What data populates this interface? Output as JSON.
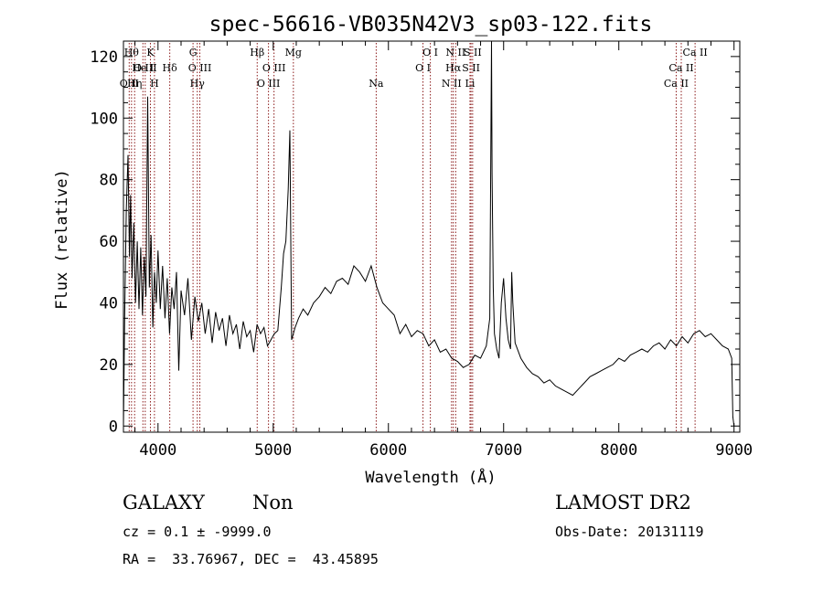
{
  "chart_data": {
    "type": "line",
    "title": "spec-56616-VB035N42V3_sp03-122.fits",
    "xlabel": "Wavelength (Å)",
    "ylabel": "Flux (relative)",
    "xlim": [
      3700,
      9050
    ],
    "ylim": [
      -2,
      125
    ],
    "xticks": [
      4000,
      5000,
      6000,
      7000,
      8000,
      9000
    ],
    "yticks": [
      0,
      20,
      40,
      60,
      80,
      100,
      120
    ],
    "grid": false,
    "line_color": "#000000",
    "marker_color": "#8b1a1a",
    "series": [
      {
        "x": [
          3700,
          3710,
          3725,
          3740,
          3752,
          3762,
          3775,
          3790,
          3805,
          3820,
          3835,
          3850,
          3865,
          3880,
          3895,
          3910,
          3925,
          3940,
          3955,
          3970,
          3985,
          4000,
          4020,
          4040,
          4060,
          4080,
          4100,
          4120,
          4140,
          4160,
          4180,
          4200,
          4230,
          4260,
          4290,
          4320,
          4350,
          4380,
          4410,
          4440,
          4470,
          4500,
          4530,
          4560,
          4590,
          4620,
          4650,
          4680,
          4710,
          4740,
          4770,
          4800,
          4830,
          4860,
          4890,
          4920,
          4950,
          4980,
          5010,
          5040,
          5070,
          5090,
          5110,
          5130,
          5145,
          5160,
          5175,
          5190,
          5220,
          5260,
          5300,
          5350,
          5400,
          5450,
          5500,
          5550,
          5600,
          5650,
          5700,
          5750,
          5800,
          5850,
          5900,
          5950,
          6000,
          6050,
          6100,
          6150,
          6200,
          6250,
          6300,
          6350,
          6400,
          6450,
          6500,
          6550,
          6600,
          6650,
          6700,
          6750,
          6800,
          6850,
          6880,
          6895,
          6900,
          6910,
          6920,
          6940,
          6960,
          6980,
          7000,
          7020,
          7040,
          7060,
          7070,
          7080,
          7100,
          7150,
          7200,
          7250,
          7300,
          7350,
          7400,
          7450,
          7500,
          7550,
          7600,
          7650,
          7700,
          7750,
          7800,
          7850,
          7900,
          7950,
          8000,
          8050,
          8100,
          8150,
          8200,
          8250,
          8300,
          8350,
          8400,
          8450,
          8500,
          8550,
          8600,
          8650,
          8700,
          8750,
          8800,
          8850,
          8900,
          8950,
          8980,
          8990,
          9000
        ],
        "y": [
          0,
          35,
          70,
          88,
          55,
          75,
          48,
          66,
          40,
          60,
          38,
          58,
          36,
          55,
          42,
          107,
          45,
          62,
          32,
          50,
          40,
          57,
          38,
          52,
          35,
          48,
          30,
          45,
          38,
          50,
          18,
          44,
          36,
          48,
          28,
          42,
          34,
          40,
          30,
          38,
          27,
          37,
          31,
          35,
          26,
          36,
          30,
          33,
          25,
          34,
          29,
          31,
          24,
          33,
          30,
          32,
          26,
          28,
          30,
          31,
          45,
          56,
          60,
          77,
          96,
          28,
          30,
          32,
          35,
          38,
          36,
          40,
          42,
          45,
          43,
          47,
          48,
          46,
          52,
          50,
          47,
          52,
          45,
          40,
          38,
          36,
          30,
          33,
          29,
          31,
          30,
          26,
          28,
          24,
          25,
          22,
          21,
          19,
          20,
          23,
          22,
          26,
          35,
          125,
          82,
          45,
          30,
          25,
          22,
          40,
          48,
          35,
          28,
          25,
          50,
          40,
          27,
          22,
          19,
          17,
          16,
          14,
          15,
          13,
          12,
          11,
          10,
          12,
          14,
          16,
          17,
          18,
          19,
          20,
          22,
          21,
          23,
          24,
          25,
          24,
          26,
          27,
          25,
          28,
          26,
          29,
          27,
          30,
          31,
          29,
          30,
          28,
          26,
          25,
          22,
          3,
          0
        ]
      }
    ],
    "lines": [
      {
        "w": 3750,
        "label": "O II",
        "row": 2
      },
      {
        "w": 3770,
        "label": "Hθ",
        "row": 0
      },
      {
        "w": 3797,
        "label": "Hη",
        "row": 2
      },
      {
        "w": 3869,
        "label": "He I",
        "row": 1
      },
      {
        "w": 3889,
        "label": "O III",
        "row": 1
      },
      {
        "w": 3934,
        "label": "K",
        "row": 0
      },
      {
        "w": 3969,
        "label": "H",
        "row": 2
      },
      {
        "w": 4102,
        "label": "Hδ",
        "row": 1
      },
      {
        "w": 4304,
        "label": "G",
        "row": 0
      },
      {
        "w": 4341,
        "label": "Hγ",
        "row": 2
      },
      {
        "w": 4363,
        "label": "O III",
        "row": 1
      },
      {
        "w": 4861,
        "label": "Hβ",
        "row": 0
      },
      {
        "w": 4959,
        "label": "O III",
        "row": 2
      },
      {
        "w": 5007,
        "label": "O III",
        "row": 1
      },
      {
        "w": 5175,
        "label": "Mg",
        "row": 0
      },
      {
        "w": 5894,
        "label": "Na",
        "row": 2
      },
      {
        "w": 6300,
        "label": "O I",
        "row": 1
      },
      {
        "w": 6364,
        "label": "O I",
        "row": 0
      },
      {
        "w": 6548,
        "label": "N II",
        "row": 2
      },
      {
        "w": 6563,
        "label": "Hα",
        "row": 1
      },
      {
        "w": 6584,
        "label": "N II",
        "row": 0
      },
      {
        "w": 6708,
        "label": "Li",
        "row": 2
      },
      {
        "w": 6717,
        "label": "S II",
        "row": 1
      },
      {
        "w": 6731,
        "label": "S II",
        "row": 0
      },
      {
        "w": 8498,
        "label": "Ca II",
        "row": 2
      },
      {
        "w": 8542,
        "label": "Ca II",
        "row": 1
      },
      {
        "w": 8662,
        "label": "Ca II",
        "row": 0
      }
    ]
  },
  "info": {
    "class_label": "GALAXY",
    "subclass_label": "Non",
    "survey_label": "LAMOST DR2",
    "cz_text": "cz = 0.1 ± -9999.0",
    "obs_date_text": "Obs-Date: 20131119",
    "coords_text": "RA =  33.76967, DEC =  43.45895"
  }
}
